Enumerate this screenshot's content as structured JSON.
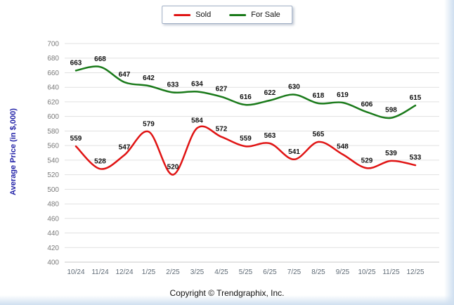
{
  "chart_data": {
    "type": "line",
    "categories": [
      "10/24",
      "11/24",
      "12/24",
      "1/25",
      "2/25",
      "3/25",
      "4/25",
      "5/25",
      "6/25",
      "7/25",
      "8/25",
      "9/25",
      "10/25",
      "11/25",
      "12/25"
    ],
    "series": [
      {
        "name": "Sold",
        "color": "#e01414",
        "values": [
          559,
          528,
          547,
          579,
          520,
          584,
          572,
          559,
          563,
          541,
          565,
          548,
          529,
          539,
          533
        ]
      },
      {
        "name": "For Sale",
        "color": "#1a7a1a",
        "values": [
          663,
          668,
          647,
          642,
          633,
          634,
          627,
          616,
          622,
          630,
          618,
          619,
          606,
          598,
          615
        ]
      }
    ],
    "title": "",
    "xlabel": "",
    "ylabel": "Average Price (in $,000)",
    "ylim": [
      400,
      700
    ],
    "yticks": [
      400,
      420,
      440,
      460,
      480,
      500,
      520,
      540,
      560,
      580,
      600,
      620,
      640,
      660,
      680,
      700
    ],
    "grid": true,
    "legend_position": "top"
  },
  "colors": {
    "ylabel": "#2323a8",
    "tick_text": "#7a7a7a",
    "grid_line": "#e1e1e1",
    "axis_line": "#c8c8c8",
    "data_label": "#111111"
  },
  "footer": {
    "copyright": "Copyright © Trendgraphix, Inc."
  }
}
